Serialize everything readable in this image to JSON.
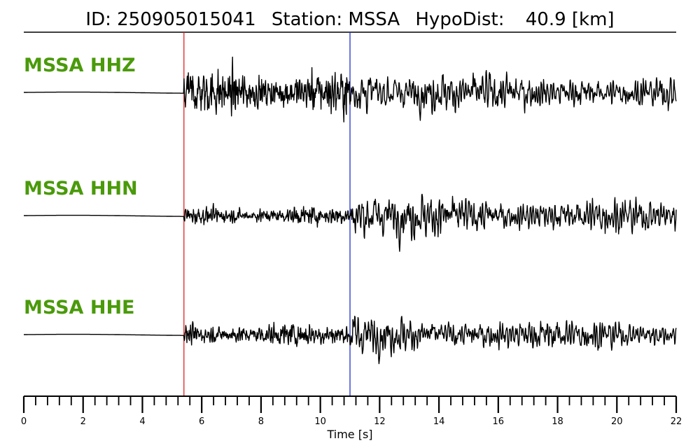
{
  "header": {
    "id_label": "ID:",
    "id_value": "250905015041",
    "station_label": "Station:",
    "station_value": "MSSA",
    "hypodist_label": "HypoDist:",
    "hypodist_value": "40.9",
    "hypodist_unit": "[km]"
  },
  "colors": {
    "trace": "#000000",
    "label": "#4a9a0a",
    "p_pick": "#e02020",
    "s_pick": "#2030d0"
  },
  "chart_data": {
    "type": "line",
    "title": "ID: 250905015041   Station: MSSA   HypoDist:    40.9 [km]",
    "xlabel": "Time [s]",
    "ylabel": "",
    "xlim": [
      0,
      22
    ],
    "x_major_ticks": [
      0,
      2,
      4,
      6,
      8,
      10,
      12,
      14,
      16,
      18,
      20,
      22
    ],
    "x_minor_step": 0.4,
    "grid": false,
    "legend": "none",
    "picks": [
      {
        "phase": "P",
        "time": 5.4,
        "color": "#e02020"
      },
      {
        "phase": "S",
        "time": 11.0,
        "color": "#2030d0"
      }
    ],
    "series": [
      {
        "name": "MSSA HHZ",
        "noise_before_p": 0.01,
        "amp_p_coda": 0.9,
        "amp_s_coda": 1.0,
        "max_abs": 1.15,
        "min": -1.05
      },
      {
        "name": "MSSA HHN",
        "noise_before_p": 0.01,
        "amp_p_coda": 0.35,
        "amp_s_coda": 1.0,
        "max_abs": 1.05,
        "min": -1.0
      },
      {
        "name": "MSSA HHE",
        "noise_before_p": 0.01,
        "amp_p_coda": 0.45,
        "amp_s_coda": 0.85,
        "max_abs": 1.1,
        "min": -0.75
      }
    ]
  }
}
